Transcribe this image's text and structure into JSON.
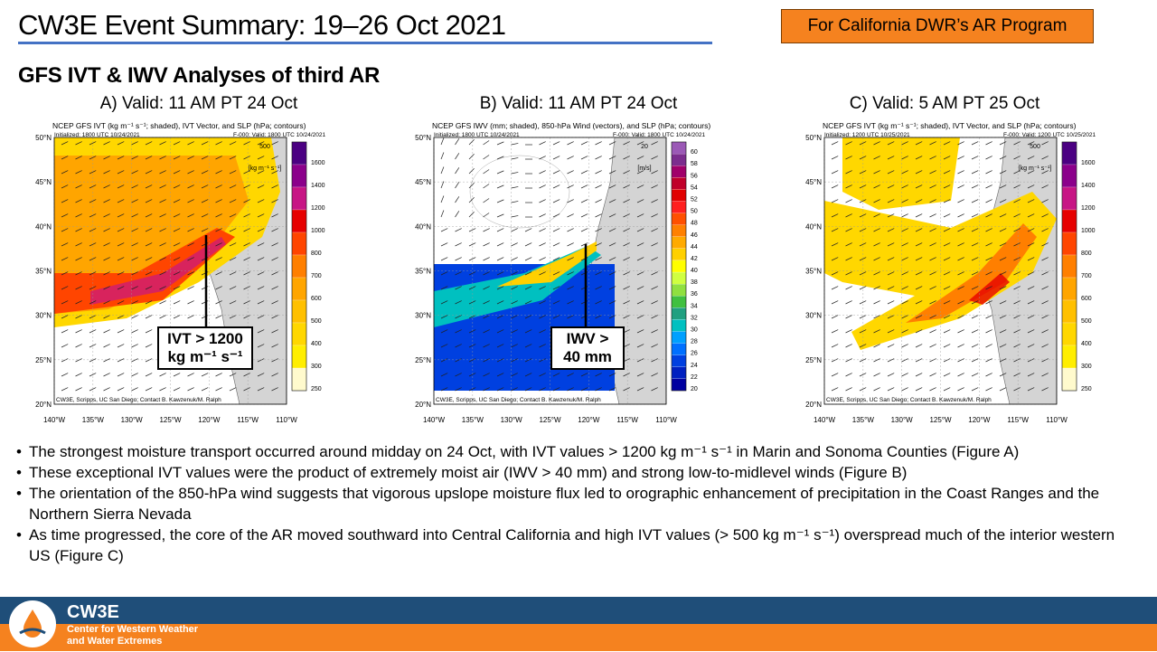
{
  "header": {
    "title": "CW3E Event Summary: 19–26 Oct 2021",
    "badge": "For California DWR’s AR Program",
    "subtitle": "GFS IVT & IWV Analyses of third AR"
  },
  "panels": [
    {
      "heading": "A) Valid: 11 AM PT 24 Oct",
      "map_title": "NCEP GFS IVT (kg m⁻¹ s⁻¹; shaded), IVT Vector, and SLP (hPa; contours)",
      "init": "Initialized: 1800 UTC 10/24/2021",
      "valid": "F-000: Valid: 1800 UTC 10/24/2021",
      "vector_ref": "500",
      "vector_units": "[kg m⁻¹ s⁻¹]",
      "credit": "CW3E, Scripps, UC San Diego; Contact B. Kawzenuk/M. Ralph",
      "colorbar": [
        "1600",
        "1400",
        "1200",
        "1000",
        "800",
        "700",
        "600",
        "500",
        "400",
        "300",
        "250"
      ],
      "callout": [
        "IVT > 1200",
        "kg m⁻¹ s⁻¹"
      ]
    },
    {
      "heading": "B) Valid: 11 AM PT 24 Oct",
      "map_title": "NCEP GFS IWV (mm; shaded), 850-hPa Wind (vectors), and SLP (hPa; contours)",
      "init": "Initialized: 1800 UTC 10/24/2021",
      "valid": "F-000: Valid: 1800 UTC 10/24/2021",
      "vector_ref": "20",
      "vector_units": "[m/s]",
      "credit": "CW3E, Scripps, UC San Diego; Contact B. Kawzenuk/M. Ralph",
      "colorbar": [
        "60",
        "58",
        "56",
        "54",
        "52",
        "50",
        "48",
        "46",
        "44",
        "42",
        "40",
        "38",
        "36",
        "34",
        "32",
        "30",
        "28",
        "26",
        "24",
        "22",
        "20"
      ],
      "callout": [
        "IWV >",
        "40 mm"
      ]
    },
    {
      "heading": "C) Valid: 5 AM PT 25 Oct",
      "map_title": "NCEP GFS IVT (kg m⁻¹ s⁻¹; shaded), IVT Vector, and SLP (hPa; contours)",
      "init": "Initialized: 1200 UTC 10/25/2021",
      "valid": "F-000: Valid: 1200 UTC 10/25/2021",
      "vector_ref": "500",
      "vector_units": "[kg m⁻¹ s⁻¹]",
      "credit": "CW3E, Scripps, UC San Diego; Contact B. Kawzenuk/M. Ralph",
      "colorbar": [
        "1600",
        "1400",
        "1200",
        "1000",
        "800",
        "700",
        "600",
        "500",
        "400",
        "300",
        "250"
      ],
      "callout": []
    }
  ],
  "map_axes": {
    "lat_labels": [
      "50°N",
      "45°N",
      "40°N",
      "35°N",
      "30°N",
      "25°N",
      "20°N"
    ],
    "lon_labels": [
      "140°W",
      "135°W",
      "130°W",
      "125°W",
      "120°W",
      "115°W",
      "110°W"
    ]
  },
  "bullets": [
    "The strongest moisture transport occurred around midday on 24 Oct, with IVT values > 1200 kg m⁻¹ s⁻¹ in Marin and Sonoma Counties (Figure A)",
    "These exceptional IVT values were the product of extremely moist air (IWV > 40 mm) and strong low-to-midlevel winds (Figure B)",
    "The orientation of the 850-hPa wind suggests that vigorous upslope moisture flux led to orographic enhancement of precipitation in the Coast Ranges and the Northern Sierra Nevada",
    "As time progressed, the core of the AR moved southward into Central California and high IVT values (> 500 kg m⁻¹ s⁻¹) overspread much of the interior western US (Figure C)"
  ],
  "footer": {
    "brand": "CW3E",
    "tagline_1": "Center for Western Weather",
    "tagline_2": "and Water Extremes"
  },
  "colors": {
    "accent_rule": "#4472c4",
    "badge": "#f5821f",
    "footer_blue": "#1f4e79",
    "footer_orange": "#f5821f"
  }
}
